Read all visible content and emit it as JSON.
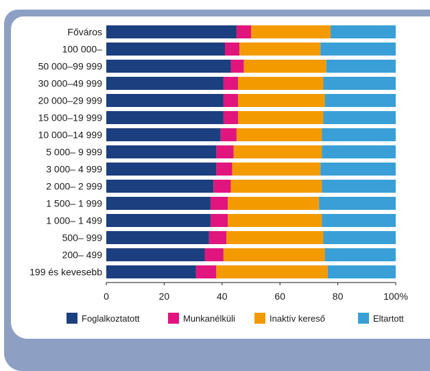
{
  "chart_data": {
    "type": "bar",
    "orientation": "horizontal",
    "stacked": true,
    "categories": [
      "Főváros",
      "100 000–",
      "50 000–99 999",
      "30 000–49 999",
      "20 000–29 999",
      "15 000–19 999",
      "10 000–14 999",
      "5 000– 9 999",
      "3 000– 4 999",
      "2 000– 2 999",
      "1 500– 1 999",
      "1 000– 1 499",
      "500– 999",
      "200– 499",
      "199 és kevesebb"
    ],
    "series": [
      {
        "name": "Foglalkoztatott",
        "color": "#1b3f7f",
        "values": [
          45,
          41,
          43,
          40.5,
          40.5,
          40.5,
          39.5,
          38,
          38,
          37,
          36,
          36,
          35.5,
          34,
          31
        ]
      },
      {
        "name": "Munkanélküli",
        "color": "#e0157e",
        "values": [
          5,
          5,
          4.5,
          5,
          5,
          5,
          5.5,
          6,
          5.5,
          6,
          6,
          6,
          6,
          6.5,
          7
        ]
      },
      {
        "name": "Inaktív kereső",
        "color": "#f39a00",
        "values": [
          27.5,
          28,
          28.5,
          29.5,
          30,
          29.5,
          29.5,
          30.5,
          30.5,
          31.5,
          31.5,
          32.5,
          33.5,
          35,
          38.5
        ]
      },
      {
        "name": "Eltartott",
        "color": "#3a9fd6",
        "values": [
          22.5,
          26,
          24,
          25,
          24.5,
          25,
          25.5,
          25.5,
          26,
          25.5,
          26.5,
          25.5,
          25,
          24.5,
          23.5
        ]
      }
    ],
    "xticks": [
      "0",
      "20",
      "40",
      "60",
      "80",
      "100%"
    ],
    "xlim": [
      0,
      100
    ],
    "grid": false,
    "legend_position": "bottom"
  }
}
